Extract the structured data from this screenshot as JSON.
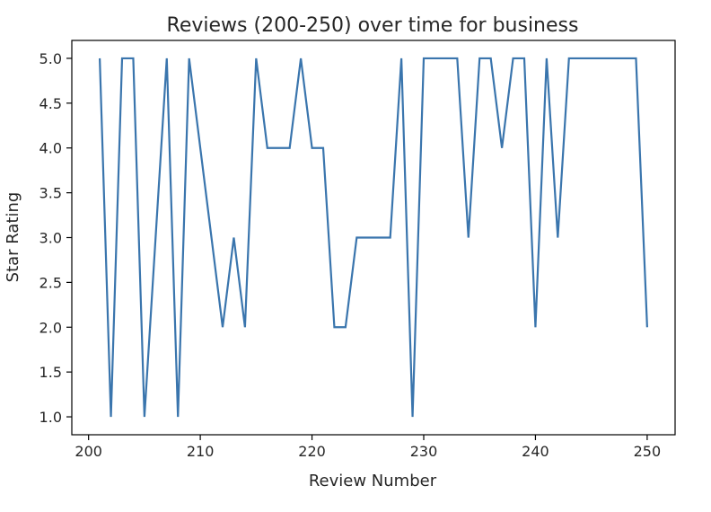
{
  "chart_data": {
    "type": "line",
    "title": "Reviews (200-250) over time for business",
    "xlabel": "Review Number",
    "ylabel": "Star Rating",
    "xlim": [
      198.5,
      252.5
    ],
    "ylim": [
      0.8,
      5.2
    ],
    "xticks": [
      200,
      210,
      220,
      230,
      240,
      250
    ],
    "yticks": [
      1.0,
      1.5,
      2.0,
      2.5,
      3.0,
      3.5,
      4.0,
      4.5,
      5.0
    ],
    "grid": false,
    "legend": "none",
    "color": "#3a75ad",
    "series": [
      {
        "x": [
          201,
          202,
          203,
          204,
          205,
          206,
          207,
          208,
          209,
          210,
          211,
          212,
          213,
          214,
          215,
          216,
          217,
          218,
          219,
          220,
          221,
          222,
          223,
          224,
          225,
          226,
          227,
          228,
          229,
          230,
          231,
          232,
          233,
          234,
          235,
          236,
          237,
          238,
          239,
          240,
          241,
          242,
          243,
          244,
          245,
          246,
          247,
          248,
          249,
          250
        ],
        "values": [
          5,
          1,
          5,
          5,
          1,
          3,
          5,
          1,
          5,
          4,
          3,
          2,
          3,
          2,
          5,
          4,
          4,
          4,
          5,
          4,
          4,
          2,
          2,
          3,
          3,
          3,
          3,
          5,
          1,
          5,
          5,
          5,
          5,
          3,
          5,
          5,
          4,
          5,
          5,
          2,
          5,
          3,
          5,
          5,
          5,
          5,
          5,
          5,
          5,
          2
        ]
      }
    ]
  }
}
